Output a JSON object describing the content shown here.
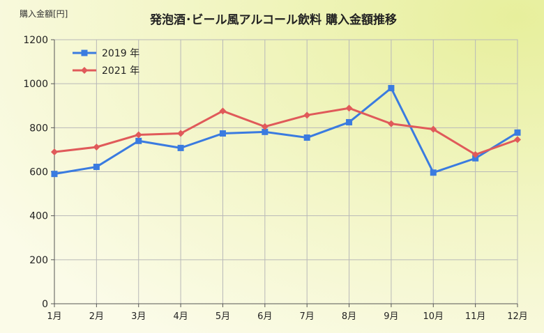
{
  "chart_data": {
    "type": "line",
    "title": "発泡酒･ビール風アルコール飲料 購入金額推移",
    "ylabel": "購入金額[円]",
    "xlabel": "",
    "categories": [
      "1月",
      "2月",
      "3月",
      "4月",
      "5月",
      "6月",
      "7月",
      "8月",
      "9月",
      "10月",
      "11月",
      "12月"
    ],
    "yticks": [
      "0",
      "200",
      "400",
      "600",
      "800",
      "1000",
      "1200"
    ],
    "ylim": [
      0,
      1200
    ],
    "grid": true,
    "legend_position": "top-left",
    "series": [
      {
        "name": "2019 年",
        "color": "#3a7be0",
        "marker": "square",
        "values": [
          590,
          622,
          740,
          708,
          774,
          781,
          755,
          825,
          980,
          596,
          661,
          778
        ]
      },
      {
        "name": "2021 年",
        "color": "#e05a5a",
        "marker": "diamond",
        "values": [
          690,
          712,
          768,
          774,
          876,
          805,
          857,
          889,
          818,
          793,
          678,
          746
        ]
      }
    ]
  }
}
